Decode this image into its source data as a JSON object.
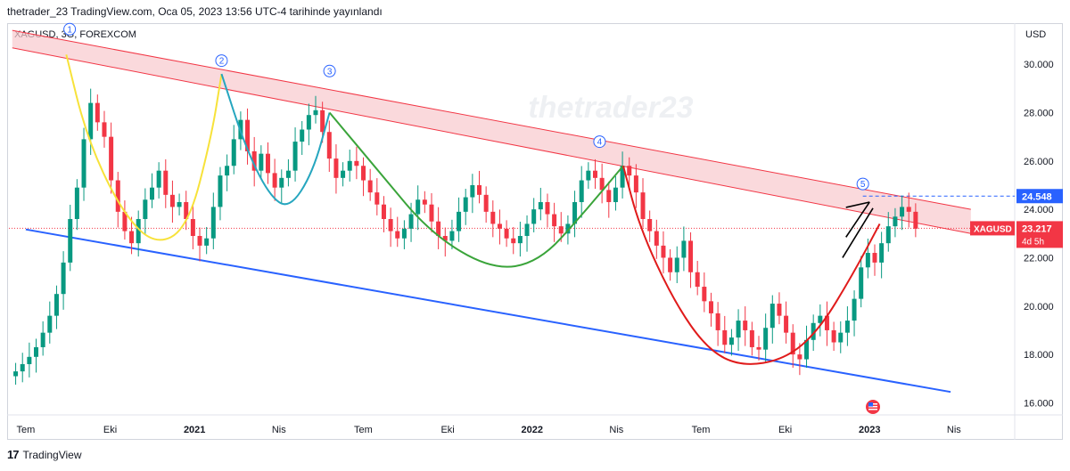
{
  "header": {
    "published": "thetrader_23 TradingView.com, Oca 05, 2023 13:56 UTC-4 tarihinde yayınlandı",
    "symbol": "XAGUSD, 3G, FOREXCOM"
  },
  "watermark": "thetrader23",
  "footer": {
    "brand": "TradingView",
    "logo": "17"
  },
  "colors": {
    "up": "#089981",
    "down": "#f23645",
    "channel_fill": "#f8c9cd",
    "channel_line": "#f23645",
    "support": "#2962ff",
    "yellow": "#f7e23a",
    "cyan": "#26a6bf",
    "green": "#3aa43a",
    "red": "#e01b1b"
  },
  "chart_data": {
    "type": "candlestick",
    "title": "",
    "currency": "USD",
    "y_ticks": [
      "30.000",
      "28.000",
      "26.000",
      "24.000",
      "22.000",
      "20.000",
      "18.000",
      "16.000"
    ],
    "ylim": [
      15.5,
      31.7
    ],
    "x_ticks": [
      "Tem",
      "Eki",
      "2021",
      "Nis",
      "Tem",
      "Eki",
      "2022",
      "Nis",
      "Tem",
      "Eki",
      "2023",
      "Nis"
    ],
    "xlim": [
      2020.45,
      2023.43
    ],
    "current_price": "23.217",
    "current_symbol": "XAGUSD",
    "countdown": "4d 5h",
    "level_price": "24.548",
    "level_value": 24.548,
    "current_value": 23.217,
    "wave_labels": [
      {
        "label": "1",
        "x": 2020.63,
        "y": 31.45
      },
      {
        "label": "2",
        "x": 2021.08,
        "y": 30.15
      },
      {
        "label": "3",
        "x": 2021.4,
        "y": 29.72
      },
      {
        "label": "4",
        "x": 2022.2,
        "y": 26.8
      },
      {
        "label": "5",
        "x": 2022.98,
        "y": 25.05
      }
    ],
    "channel": {
      "upper_top": [
        [
          2020.46,
          31.4
        ],
        [
          2023.3,
          24.0
        ]
      ],
      "upper_bottom": [
        [
          2020.46,
          30.68
        ],
        [
          2023.3,
          23.0
        ]
      ],
      "support": [
        [
          2020.5,
          23.17
        ],
        [
          2023.24,
          16.45
        ]
      ]
    },
    "closes": [
      17.3,
      17.6,
      17.9,
      18.3,
      18.9,
      19.6,
      20.5,
      21.8,
      23.6,
      24.9,
      26.9,
      28.4,
      27.6,
      27.0,
      25.2,
      23.9,
      23.1,
      22.6,
      23.6,
      24.4,
      24.9,
      25.6,
      24.6,
      24.1,
      24.3,
      23.6,
      22.9,
      22.5,
      22.8,
      24.1,
      25.4,
      25.8,
      26.9,
      27.7,
      26.4,
      25.6,
      26.3,
      25.5,
      24.9,
      25.3,
      25.6,
      26.8,
      27.3,
      27.9,
      28.1,
      27.2,
      26.1,
      25.3,
      25.6,
      26.0,
      25.8,
      25.2,
      24.7,
      24.2,
      23.6,
      23.1,
      22.8,
      23.2,
      23.8,
      24.4,
      24.2,
      23.5,
      22.9,
      22.7,
      23.1,
      23.9,
      24.5,
      25.0,
      24.6,
      23.9,
      23.4,
      23.2,
      22.8,
      22.6,
      22.9,
      23.4,
      24.0,
      24.3,
      23.8,
      23.3,
      23.0,
      23.4,
      24.3,
      25.2,
      25.6,
      25.3,
      24.8,
      24.3,
      24.9,
      25.8,
      25.4,
      24.7,
      23.6,
      23.1,
      22.5,
      22.0,
      21.4,
      22.0,
      22.7,
      21.4,
      20.8,
      20.2,
      19.7,
      19.0,
      18.4,
      18.7,
      19.4,
      19.0,
      18.3,
      18.2,
      19.1,
      20.1,
      19.6,
      18.9,
      18.0,
      17.8,
      18.6,
      19.3,
      19.6,
      19.0,
      18.5,
      18.9,
      19.4,
      20.3,
      21.6,
      22.2,
      21.8,
      22.6,
      23.3,
      23.7,
      24.1,
      23.9,
      23.2
    ],
    "x_start": 2020.47,
    "x_step": 0.0202,
    "shapes": {
      "yellow_arc": [
        [
          2020.62,
          30.4
        ],
        [
          2020.68,
          27.0
        ],
        [
          2020.78,
          24.0
        ],
        [
          2020.88,
          22.5
        ],
        [
          2020.98,
          23.2
        ],
        [
          2021.05,
          27.0
        ],
        [
          2021.08,
          29.6
        ]
      ],
      "cyan_arc": [
        [
          2021.08,
          29.6
        ],
        [
          2021.15,
          26.6
        ],
        [
          2021.22,
          24.6
        ],
        [
          2021.28,
          24.0
        ],
        [
          2021.35,
          25.5
        ],
        [
          2021.4,
          28.0
        ]
      ],
      "green_arc": [
        [
          2021.4,
          28.0
        ],
        [
          2021.55,
          25.5
        ],
        [
          2021.7,
          23.0
        ],
        [
          2021.88,
          21.5
        ],
        [
          2022.02,
          21.8
        ],
        [
          2022.15,
          23.8
        ],
        [
          2022.27,
          25.8
        ]
      ],
      "red_arc": [
        [
          2022.27,
          25.8
        ],
        [
          2022.32,
          23.2
        ],
        [
          2022.42,
          20.2
        ],
        [
          2022.52,
          18.2
        ],
        [
          2022.62,
          17.5
        ],
        [
          2022.75,
          17.8
        ],
        [
          2022.85,
          19.0
        ],
        [
          2022.95,
          21.3
        ],
        [
          2023.03,
          23.4
        ]
      ],
      "wedge_top": [
        [
          2022.93,
          24.08
        ],
        [
          2023.0,
          24.3
        ]
      ],
      "wedge_mid": [
        [
          2022.93,
          22.85
        ],
        [
          2023.0,
          24.3
        ]
      ],
      "wedge_low": [
        [
          2022.92,
          22.0
        ],
        [
          2023.01,
          24.05
        ]
      ]
    }
  }
}
